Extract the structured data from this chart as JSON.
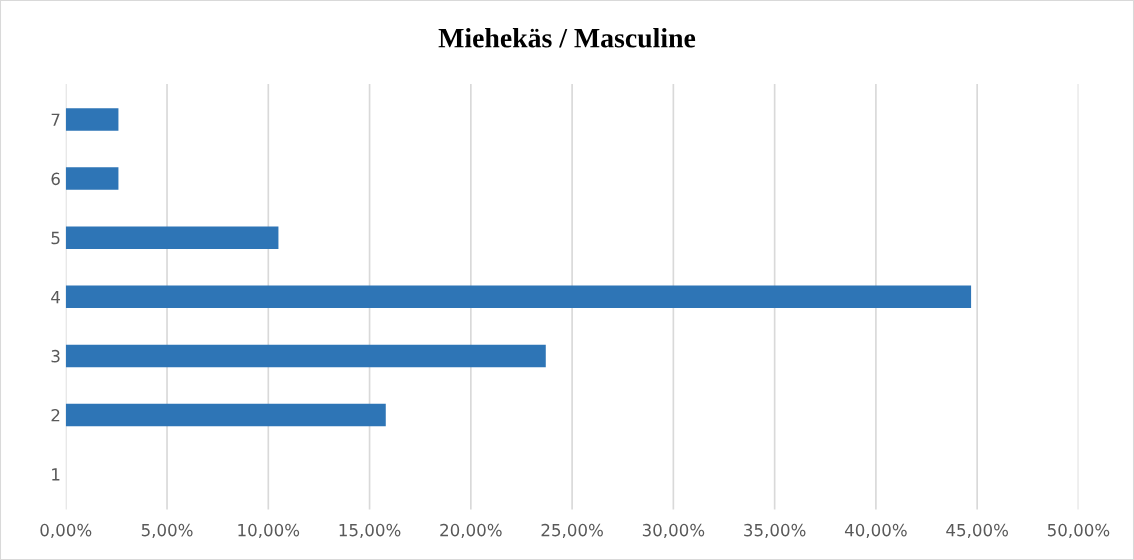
{
  "chart_data": {
    "type": "bar",
    "orientation": "horizontal",
    "title": "Miehekäs / Masculine",
    "categories": [
      "7",
      "6",
      "5",
      "4",
      "3",
      "2",
      "1"
    ],
    "values": [
      2.6,
      2.6,
      10.5,
      44.7,
      23.7,
      15.8,
      0
    ],
    "color": "#2e75b6",
    "xlim": [
      0,
      50
    ],
    "xticks": [
      {
        "value": 0,
        "label": "0,00%"
      },
      {
        "value": 5,
        "label": "5,00%"
      },
      {
        "value": 10,
        "label": "10,00%"
      },
      {
        "value": 15,
        "label": "15,00%"
      },
      {
        "value": 20,
        "label": "20,00%"
      },
      {
        "value": 25,
        "label": "25,00%"
      },
      {
        "value": 30,
        "label": "30,00%"
      },
      {
        "value": 35,
        "label": "35,00%"
      },
      {
        "value": 40,
        "label": "40,00%"
      },
      {
        "value": 45,
        "label": "45,00%"
      },
      {
        "value": 50,
        "label": "50,00%"
      }
    ],
    "grid": "x",
    "legend": false
  }
}
